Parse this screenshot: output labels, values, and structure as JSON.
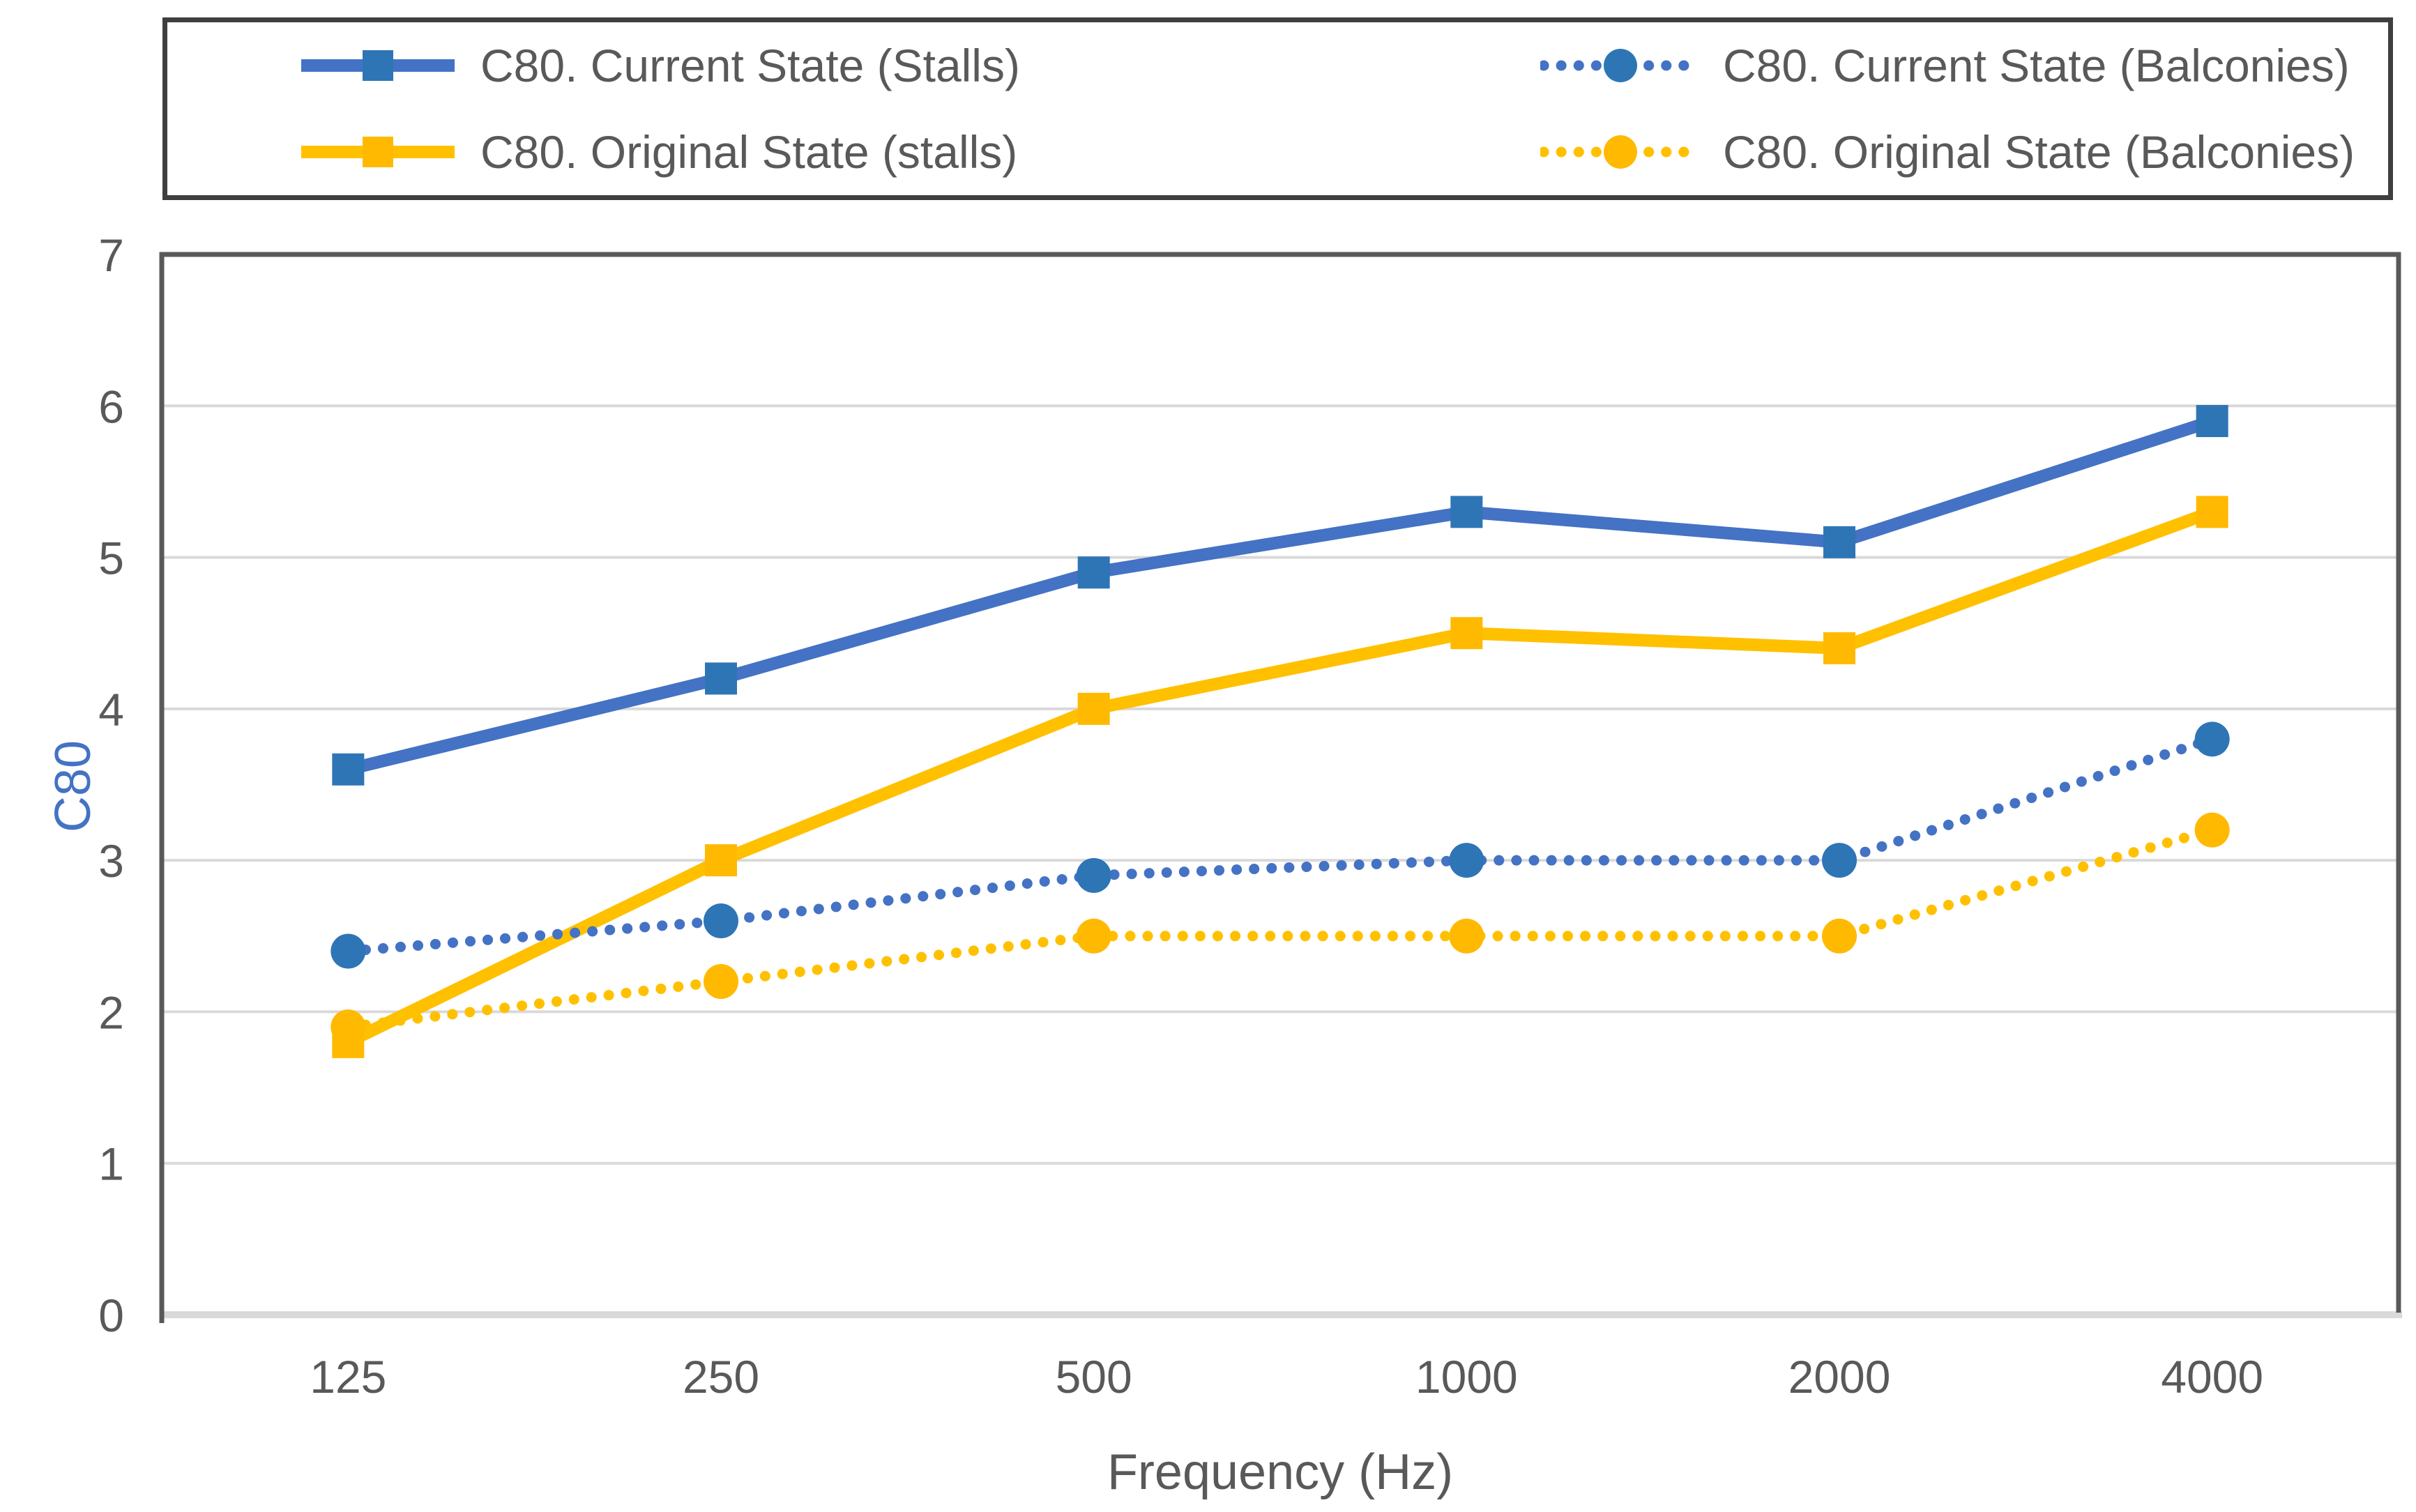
{
  "chart_data": {
    "type": "line",
    "title": "",
    "xlabel": "Frequency (Hz)",
    "ylabel": "C80",
    "categories": [
      "125",
      "250",
      "500",
      "1000",
      "2000",
      "4000"
    ],
    "ylim": [
      0,
      7
    ],
    "y_ticks": [
      0,
      1,
      2,
      3,
      4,
      5,
      6,
      7
    ],
    "grid": "horizontal",
    "legend_position": "top-boxed",
    "series": [
      {
        "name": "C80. Current State (Stalls)",
        "values": [
          3.6,
          4.2,
          4.9,
          5.3,
          5.1,
          5.9
        ],
        "line_style": "solid",
        "marker": "square",
        "line_color": "#4472C4",
        "marker_color": "#2E75B6"
      },
      {
        "name": "C80. Original State (stalls)",
        "values": [
          1.8,
          3.0,
          4.0,
          4.5,
          4.4,
          5.3
        ],
        "line_style": "solid",
        "marker": "square",
        "line_color": "#FFC000",
        "marker_color": "#FFB900"
      },
      {
        "name": "C80. Current State (Balconies)",
        "values": [
          2.4,
          2.6,
          2.9,
          3.0,
          3.0,
          3.8
        ],
        "line_style": "dotted",
        "marker": "circle",
        "line_color": "#4472C4",
        "marker_color": "#2E75B6"
      },
      {
        "name": "C80. Original State (Balconies)",
        "values": [
          1.9,
          2.2,
          2.5,
          2.5,
          2.5,
          3.2
        ],
        "line_style": "dotted",
        "marker": "circle",
        "line_color": "#FFC000",
        "marker_color": "#FFB900"
      }
    ],
    "colors": {
      "grid": "#D9D9D9",
      "x_axis_line": "#D9D9D9",
      "spine": "#595959",
      "tick_label": "#595959",
      "x_title": "#595959",
      "y_title": "#4472C4",
      "legend_border": "#3F3F3F",
      "legend_text": "#595959",
      "background": "#FFFFFF"
    }
  }
}
